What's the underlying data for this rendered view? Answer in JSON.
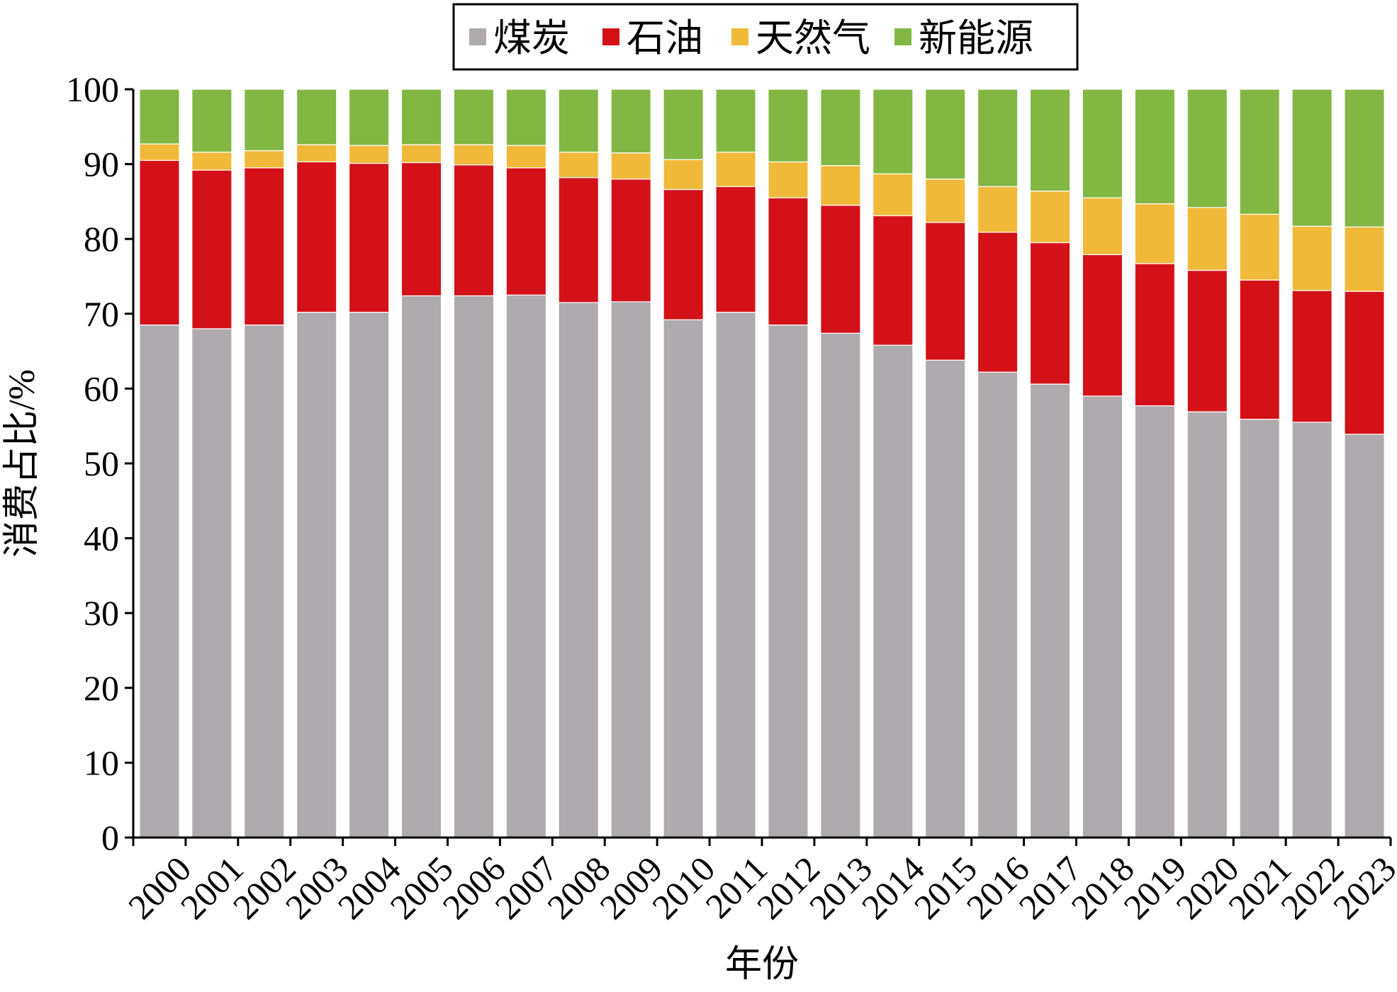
{
  "chart_data": {
    "type": "bar",
    "stacked": true,
    "xlabel": "年份",
    "ylabel": "消费占比/%",
    "ylim": [
      0,
      100
    ],
    "yticks": [
      0,
      10,
      20,
      30,
      40,
      50,
      60,
      70,
      80,
      90,
      100
    ],
    "grid": false,
    "legend_position": "top-center",
    "categories": [
      "2000",
      "2001",
      "2002",
      "2003",
      "2004",
      "2005",
      "2006",
      "2007",
      "2008",
      "2009",
      "2010",
      "2011",
      "2012",
      "2013",
      "2014",
      "2015",
      "2016",
      "2017",
      "2018",
      "2019",
      "2020",
      "2021",
      "2022",
      "2023"
    ],
    "series": [
      {
        "name": "煤炭",
        "color": "#aeaaad",
        "values": [
          68.5,
          68.0,
          68.5,
          70.2,
          70.2,
          72.4,
          72.4,
          72.5,
          71.5,
          71.6,
          69.2,
          70.2,
          68.5,
          67.4,
          65.8,
          63.8,
          62.2,
          60.6,
          59.0,
          57.7,
          56.9,
          55.9,
          55.5,
          53.9
        ]
      },
      {
        "name": "石油",
        "color": "#d41118",
        "values": [
          22.0,
          21.2,
          21.0,
          20.1,
          19.9,
          17.8,
          17.5,
          17.0,
          16.7,
          16.4,
          17.4,
          16.8,
          17.0,
          17.1,
          17.3,
          18.4,
          18.7,
          18.9,
          18.9,
          19.0,
          18.9,
          18.6,
          17.6,
          19.1
        ]
      },
      {
        "name": "天然气",
        "color": "#f1b93a",
        "values": [
          2.2,
          2.4,
          2.3,
          2.3,
          2.4,
          2.4,
          2.7,
          3.0,
          3.4,
          3.5,
          4.0,
          4.6,
          4.8,
          5.3,
          5.6,
          5.8,
          6.1,
          6.9,
          7.6,
          8.0,
          8.4,
          8.8,
          8.6,
          8.6
        ]
      },
      {
        "name": "新能源",
        "color": "#82b743",
        "values": [
          7.3,
          8.4,
          8.2,
          7.4,
          7.5,
          7.4,
          7.4,
          7.5,
          8.4,
          8.5,
          9.4,
          8.4,
          9.7,
          10.2,
          11.3,
          12.0,
          13.0,
          13.6,
          14.5,
          15.3,
          15.8,
          16.7,
          18.3,
          18.4
        ]
      }
    ]
  }
}
